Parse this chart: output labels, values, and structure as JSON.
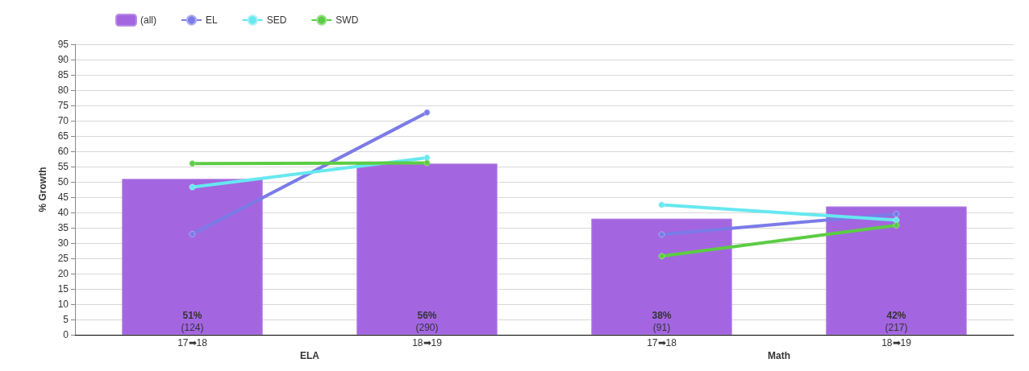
{
  "chart_data": {
    "type": "bar",
    "ylabel": "% Growth",
    "categories": [
      "17➡18",
      "18➡19",
      "17➡18",
      "18➡19"
    ],
    "annotations": [
      "ELA",
      "Math"
    ],
    "series": [
      {
        "name": "(all)",
        "type": "bar",
        "color": "#a366e0",
        "values": [
          51,
          56,
          38,
          42
        ],
        "value_labels": [
          "51%\n(124)",
          "56%\n(290)",
          "38%\n(91)",
          "42%\n(217)"
        ]
      },
      {
        "name": "EL",
        "type": "line",
        "color": "#7b7be8",
        "values": [
          32.9,
          72.7,
          32.8,
          39.5
        ]
      },
      {
        "name": "SED",
        "type": "line",
        "color": "#66e8f0",
        "values": [
          48.3,
          57.9,
          42.5,
          37.5
        ]
      },
      {
        "name": "SWD",
        "type": "line",
        "color": "#5ccc44",
        "values": [
          56.0,
          56.2,
          25.7,
          35.8
        ]
      }
    ],
    "ylim": [
      0,
      95
    ],
    "yticks": [
      0,
      5,
      10,
      15,
      20,
      25,
      30,
      35,
      40,
      45,
      50,
      55,
      60,
      65,
      70,
      75,
      80,
      85,
      90,
      95
    ],
    "grid": "y",
    "legend": "top left",
    "marker": "circle"
  }
}
